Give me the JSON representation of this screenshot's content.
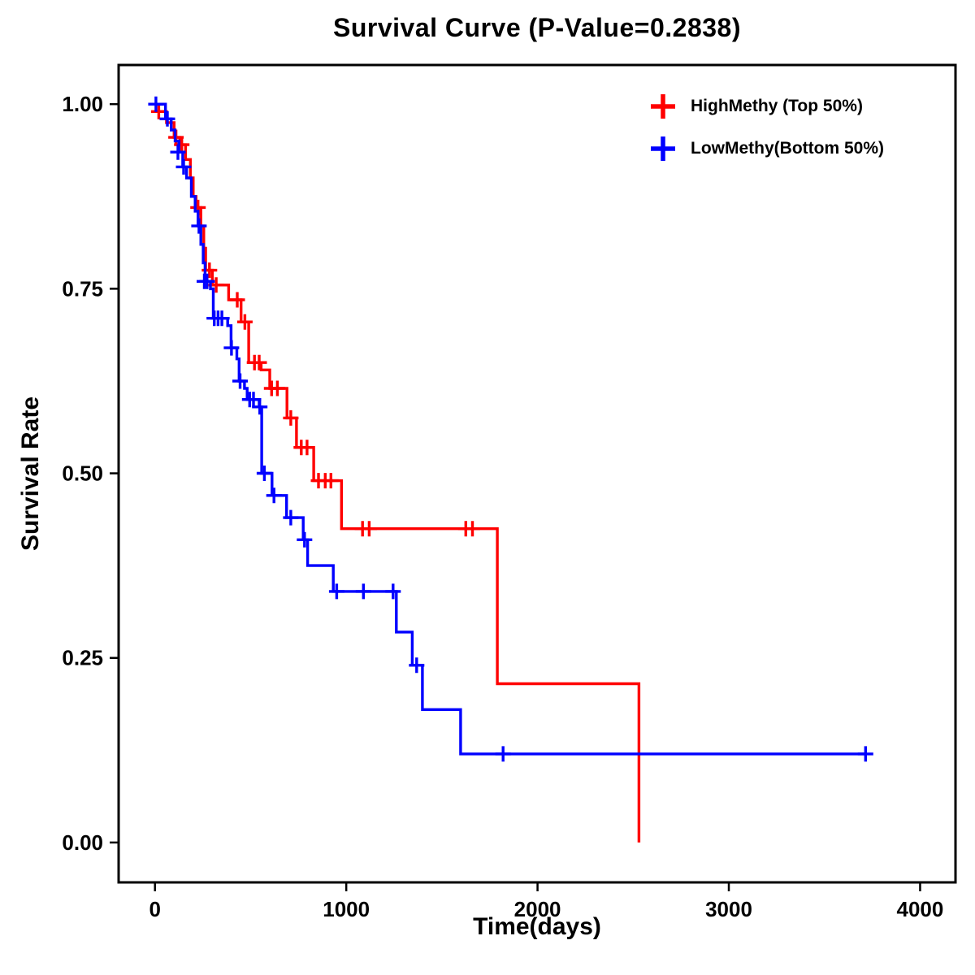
{
  "chart_data": {
    "type": "line",
    "subtype": "kaplan-meier-step",
    "title": "Survival Curve (P-Value=0.2838)",
    "xlabel": "Time(days)",
    "ylabel": "Survival Rate",
    "xlim": [
      -190,
      4185
    ],
    "ylim": [
      -0.054,
      1.053
    ],
    "xticks": [
      0,
      1000,
      2000,
      3000,
      4000
    ],
    "yticks": [
      0.0,
      0.25,
      0.5,
      0.75,
      1.0
    ],
    "grid": false,
    "legend_position": "top-right",
    "series": [
      {
        "name": "HighMethy (Top 50%)",
        "color": "#ff0000",
        "steps": [
          [
            0,
            0.99
          ],
          [
            60,
            0.975
          ],
          [
            100,
            0.955
          ],
          [
            130,
            0.945
          ],
          [
            160,
            0.925
          ],
          [
            185,
            0.9
          ],
          [
            200,
            0.875
          ],
          [
            215,
            0.86
          ],
          [
            240,
            0.835
          ],
          [
            255,
            0.805
          ],
          [
            265,
            0.775
          ],
          [
            300,
            0.755
          ],
          [
            385,
            0.735
          ],
          [
            450,
            0.705
          ],
          [
            490,
            0.65
          ],
          [
            555,
            0.64
          ],
          [
            600,
            0.615
          ],
          [
            690,
            0.575
          ],
          [
            740,
            0.535
          ],
          [
            830,
            0.49
          ],
          [
            975,
            0.425
          ],
          [
            1790,
            0.215
          ],
          [
            2530,
            0.0
          ]
        ],
        "censors": [
          [
            20,
            0.99
          ],
          [
            110,
            0.955
          ],
          [
            140,
            0.945
          ],
          [
            225,
            0.86
          ],
          [
            285,
            0.775
          ],
          [
            320,
            0.755
          ],
          [
            430,
            0.735
          ],
          [
            470,
            0.705
          ],
          [
            520,
            0.65
          ],
          [
            545,
            0.65
          ],
          [
            610,
            0.615
          ],
          [
            640,
            0.615
          ],
          [
            710,
            0.575
          ],
          [
            765,
            0.535
          ],
          [
            795,
            0.535
          ],
          [
            855,
            0.49
          ],
          [
            890,
            0.49
          ],
          [
            920,
            0.49
          ],
          [
            1085,
            0.425
          ],
          [
            1120,
            0.425
          ],
          [
            1625,
            0.425
          ],
          [
            1660,
            0.425
          ]
        ]
      },
      {
        "name": "LowMethy(Bottom 50%)",
        "color": "#0000ff",
        "steps": [
          [
            0,
            1.0
          ],
          [
            55,
            0.98
          ],
          [
            85,
            0.965
          ],
          [
            105,
            0.95
          ],
          [
            125,
            0.935
          ],
          [
            145,
            0.915
          ],
          [
            165,
            0.9
          ],
          [
            190,
            0.875
          ],
          [
            210,
            0.855
          ],
          [
            225,
            0.835
          ],
          [
            240,
            0.81
          ],
          [
            252,
            0.785
          ],
          [
            262,
            0.76
          ],
          [
            290,
            0.75
          ],
          [
            305,
            0.71
          ],
          [
            380,
            0.7
          ],
          [
            398,
            0.67
          ],
          [
            428,
            0.655
          ],
          [
            440,
            0.625
          ],
          [
            468,
            0.615
          ],
          [
            482,
            0.6
          ],
          [
            545,
            0.59
          ],
          [
            558,
            0.5
          ],
          [
            612,
            0.47
          ],
          [
            688,
            0.44
          ],
          [
            775,
            0.41
          ],
          [
            798,
            0.375
          ],
          [
            932,
            0.34
          ],
          [
            1262,
            0.285
          ],
          [
            1345,
            0.24
          ],
          [
            1398,
            0.18
          ],
          [
            1598,
            0.12
          ],
          [
            3720,
            0.12
          ]
        ],
        "censors": [
          [
            5,
            1.0
          ],
          [
            65,
            0.98
          ],
          [
            120,
            0.935
          ],
          [
            150,
            0.915
          ],
          [
            230,
            0.835
          ],
          [
            258,
            0.76
          ],
          [
            272,
            0.76
          ],
          [
            310,
            0.71
          ],
          [
            330,
            0.71
          ],
          [
            350,
            0.71
          ],
          [
            400,
            0.67
          ],
          [
            445,
            0.625
          ],
          [
            495,
            0.6
          ],
          [
            515,
            0.6
          ],
          [
            548,
            0.59
          ],
          [
            572,
            0.5
          ],
          [
            622,
            0.47
          ],
          [
            710,
            0.44
          ],
          [
            782,
            0.41
          ],
          [
            950,
            0.34
          ],
          [
            1090,
            0.34
          ],
          [
            1245,
            0.34
          ],
          [
            1368,
            0.24
          ],
          [
            1820,
            0.12
          ],
          [
            3715,
            0.12
          ]
        ]
      }
    ]
  }
}
